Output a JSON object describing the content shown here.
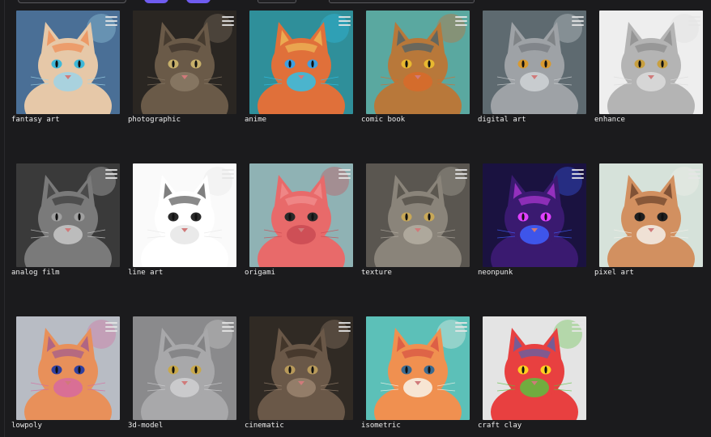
{
  "styles": [
    {
      "label": "fantasy art",
      "bg": "#4a6f96",
      "fur": "#e6c8a8",
      "accent": "#f07a3a",
      "eye": "#3fb8d8",
      "extra": "#9ed4e8"
    },
    {
      "label": "photographic",
      "bg": "#2a2622",
      "fur": "#6a5a48",
      "accent": "#2e2620",
      "eye": "#c7b06a",
      "extra": "#8a7a66"
    },
    {
      "label": "anime",
      "bg": "#2f8f9a",
      "fur": "#e0703a",
      "accent": "#f2d060",
      "eye": "#3fa0e0",
      "extra": "#30c0e8"
    },
    {
      "label": "comic book",
      "bg": "#5aa8a0",
      "fur": "#b8783a",
      "accent": "#2a5a78",
      "eye": "#e8b830",
      "extra": "#d86a2a"
    },
    {
      "label": "digital art",
      "bg": "#5e6a70",
      "fur": "#9ea2a6",
      "accent": "#6a6e72",
      "eye": "#d89a30",
      "extra": "#cfd3d6"
    },
    {
      "label": "enhance",
      "bg": "#eeeeee",
      "fur": "#b4b4b4",
      "accent": "#808080",
      "eye": "#c8a040",
      "extra": "#dcdcdc"
    },
    {
      "label": "analog film",
      "bg": "#3a3a3a",
      "fur": "#7a7a7a",
      "accent": "#2a2a2a",
      "eye": "#a0a0a0",
      "extra": "#c8c8c8"
    },
    {
      "label": "line art",
      "bg": "#fafafa",
      "fur": "#ffffff",
      "accent": "#2a2a2a",
      "eye": "#2a2a2a",
      "extra": "#e6e6e6"
    },
    {
      "label": "origami",
      "bg": "#8fb2b4",
      "fur": "#e86a6a",
      "accent": "#f49a9a",
      "eye": "#2a2a2a",
      "extra": "#c94a52"
    },
    {
      "label": "texture",
      "bg": "#5a5650",
      "fur": "#8a847a",
      "accent": "#3c3832",
      "eye": "#c8a858",
      "extra": "#b4aea2"
    },
    {
      "label": "neonpunk",
      "bg": "#1a1240",
      "fur": "#3a1a70",
      "accent": "#d040f0",
      "eye": "#e040ff",
      "extra": "#4060ff"
    },
    {
      "label": "pixel art",
      "bg": "#d6e2da",
      "fur": "#d29060",
      "accent": "#4a2a1a",
      "eye": "#202020",
      "extra": "#f4f0ea"
    },
    {
      "label": "lowpoly",
      "bg": "#b8bcc4",
      "fur": "#e8905a",
      "accent": "#8a4aa0",
      "eye": "#3040a0",
      "extra": "#d66aa0"
    },
    {
      "label": "3d-model",
      "bg": "#8a8a8c",
      "fur": "#a8a8aa",
      "accent": "#6a6a6c",
      "eye": "#c8a84a",
      "extra": "#d0d0d2"
    },
    {
      "label": "cinematic",
      "bg": "#302a24",
      "fur": "#6a5848",
      "accent": "#2a2018",
      "eye": "#b89a5a",
      "extra": "#9a8470"
    },
    {
      "label": "isometric",
      "bg": "#5cc0b8",
      "fur": "#f09050",
      "accent": "#d04040",
      "eye": "#3a6a90",
      "extra": "#f8f4ea"
    },
    {
      "label": "craft clay",
      "bg": "#e4e4e4",
      "fur": "#e84040",
      "accent": "#2a70d0",
      "eye": "#ffd020",
      "extra": "#5cc040"
    }
  ]
}
